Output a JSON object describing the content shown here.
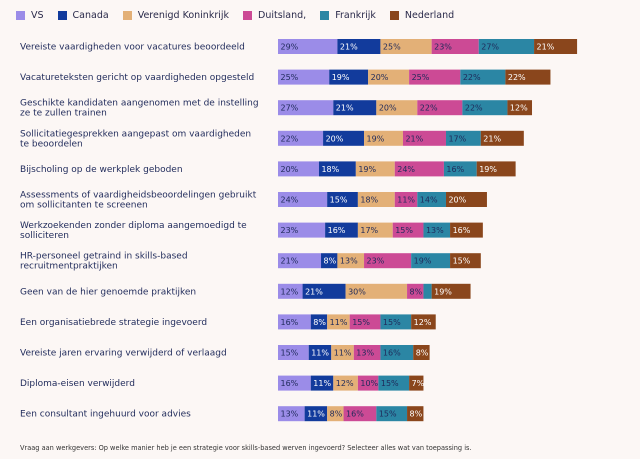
{
  "chart_data": {
    "type": "bar",
    "stacked": true,
    "orientation": "horizontal",
    "xlim": [
      0,
      165
    ],
    "categories": [
      "Vereiste vaardigheden voor vacatures beoordeeld",
      "Vacatureteksten gericht op vaardigheden opgesteld",
      "Geschikte kandidaten aangenomen met de instelling ze te zullen trainen",
      "Sollicitatiegesprekken aangepast om vaardigheden te beoordelen",
      "Bijscholing op de werkplek geboden",
      "Assessments of vaardigheidsbeoordelingen gebruikt om sollicitanten te screenen",
      "Werkzoekenden zonder diploma aangemoedigd te solliciteren",
      "HR-personeel getraind in skills-based recruitmentpraktijken",
      "Geen van de hier genoemde praktijken",
      "Een organisatiebrede strategie ingevoerd",
      "Vereiste jaren ervaring verwijderd of verlaagd",
      "Diploma-eisen verwijderd",
      "Een consultant ingehuurd voor advies"
    ],
    "series": [
      {
        "name": "VS",
        "color": "#9b8ce8",
        "values": [
          29,
          25,
          27,
          22,
          20,
          24,
          23,
          21,
          12,
          16,
          15,
          16,
          13
        ]
      },
      {
        "name": "Canada",
        "color": "#123b9c",
        "values": [
          21,
          19,
          21,
          20,
          18,
          15,
          16,
          8,
          21,
          8,
          11,
          11,
          11
        ]
      },
      {
        "name": "Verenigd Koninkrijk",
        "color": "#e3b077",
        "values": [
          25,
          20,
          20,
          19,
          19,
          18,
          17,
          13,
          30,
          11,
          11,
          12,
          8
        ]
      },
      {
        "name": "Duitsland,",
        "color": "#cc4a95",
        "values": [
          23,
          25,
          22,
          21,
          24,
          11,
          15,
          23,
          8,
          15,
          13,
          10,
          16
        ]
      },
      {
        "name": "Frankrijk",
        "color": "#2b86a4",
        "values": [
          27,
          22,
          22,
          17,
          16,
          14,
          13,
          19,
          4,
          15,
          16,
          15,
          15
        ]
      },
      {
        "name": "Nederland",
        "color": "#8a461c",
        "values": [
          21,
          22,
          12,
          21,
          19,
          20,
          16,
          15,
          19,
          12,
          8,
          7,
          8
        ]
      }
    ],
    "value_labels": [
      [
        "29%",
        "21%",
        "25%",
        "23%",
        "27%",
        "21%"
      ],
      [
        "25%",
        "19%",
        "20%",
        "25%",
        "22%",
        "22%"
      ],
      [
        "27%",
        "21%",
        "20%",
        "22%",
        "22%",
        "12%"
      ],
      [
        "22%",
        "20%",
        "19%",
        "21%",
        "17%",
        "21%"
      ],
      [
        "20%",
        "18%",
        "19%",
        "24%",
        "16%",
        "19%"
      ],
      [
        "24%",
        "15%",
        "18%",
        "11%",
        "14%",
        "20%"
      ],
      [
        "23%",
        "16%",
        "17%",
        "15%",
        "13%",
        "16%"
      ],
      [
        "21%",
        "8%",
        "13%",
        "23%",
        "19%",
        "15%"
      ],
      [
        "12%",
        "21%",
        "30%",
        "8%",
        "",
        "19%"
      ],
      [
        "16%",
        "8%",
        "11%",
        "15%",
        "15%",
        "12%"
      ],
      [
        "15%",
        "11%",
        "11%",
        "13%",
        "16%",
        "8%"
      ],
      [
        "16%",
        "11%",
        "12%",
        "10%",
        "15%",
        "7%"
      ],
      [
        "13%",
        "11%",
        "8%",
        "16%",
        "15%",
        "8%"
      ]
    ],
    "label_colors": {
      "dark_text": "#1f2a5a",
      "light_text": "#ffffff"
    },
    "legend_position": "top-left",
    "grid": false,
    "footnote": "Vraag aan werkgevers: Op welke manier heb je een strategie voor skills-based werven ingevoerd? Selecteer alles wat van toepassing is."
  }
}
